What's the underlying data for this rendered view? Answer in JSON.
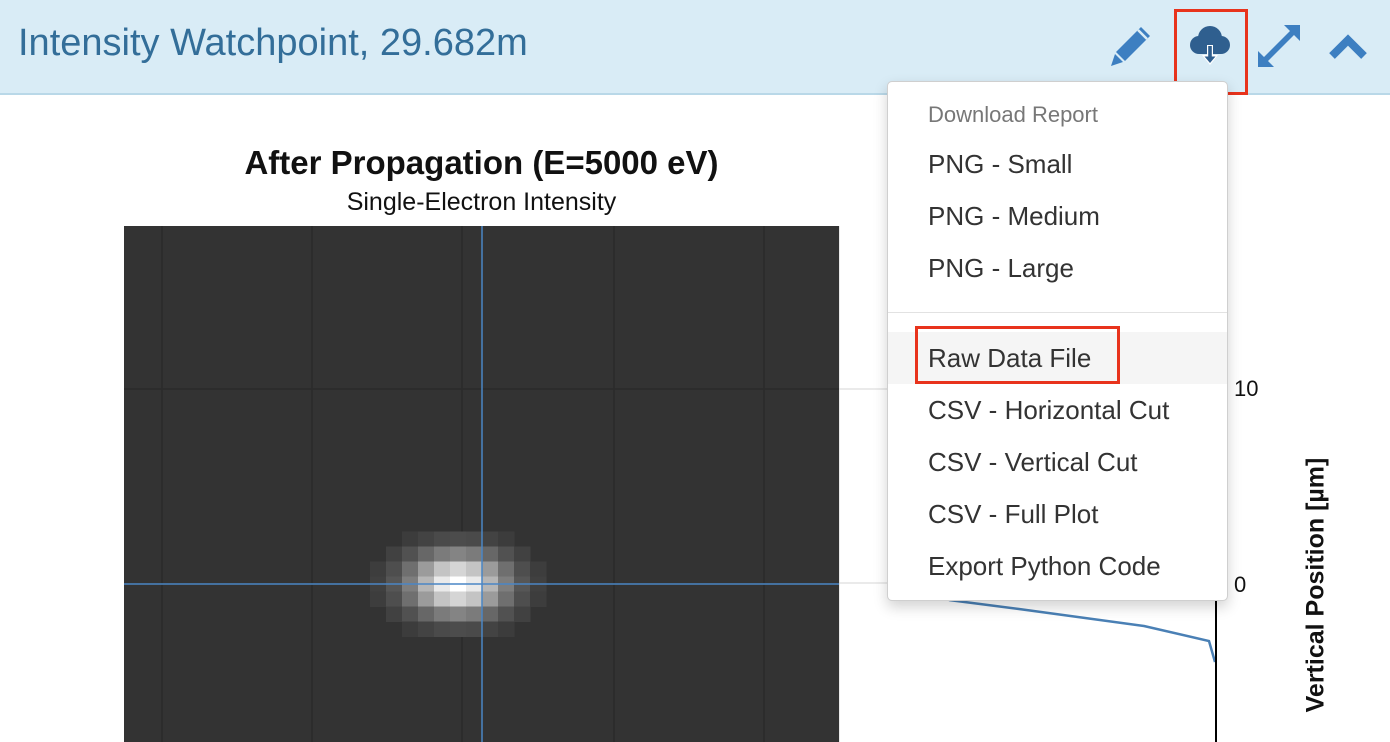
{
  "header": {
    "title": "Intensity Watchpoint, 29.682m",
    "icons": [
      "pencil-icon",
      "cloud-download-icon",
      "expand-icon",
      "chevron-up-icon"
    ],
    "icon_color": "#3d7fc1"
  },
  "plot": {
    "title": "After Propagation (E=5000 eV)",
    "subtitle": "Single-Electron Intensity",
    "side_axis_label": "Vertical Position [µm]",
    "side_ticks": [
      "10",
      "0"
    ]
  },
  "dropdown": {
    "header": "Download Report",
    "group1": [
      "PNG - Small",
      "PNG - Medium",
      "PNG - Large"
    ],
    "group2": [
      "Raw Data File",
      "CSV - Horizontal Cut",
      "CSV - Vertical Cut",
      "CSV - Full Plot",
      "Export Python Code"
    ]
  },
  "colors": {
    "highlight": "#e8331c",
    "header_bg": "#d9ecf6",
    "title": "#336e99",
    "crosshair": "#4a86c5"
  }
}
